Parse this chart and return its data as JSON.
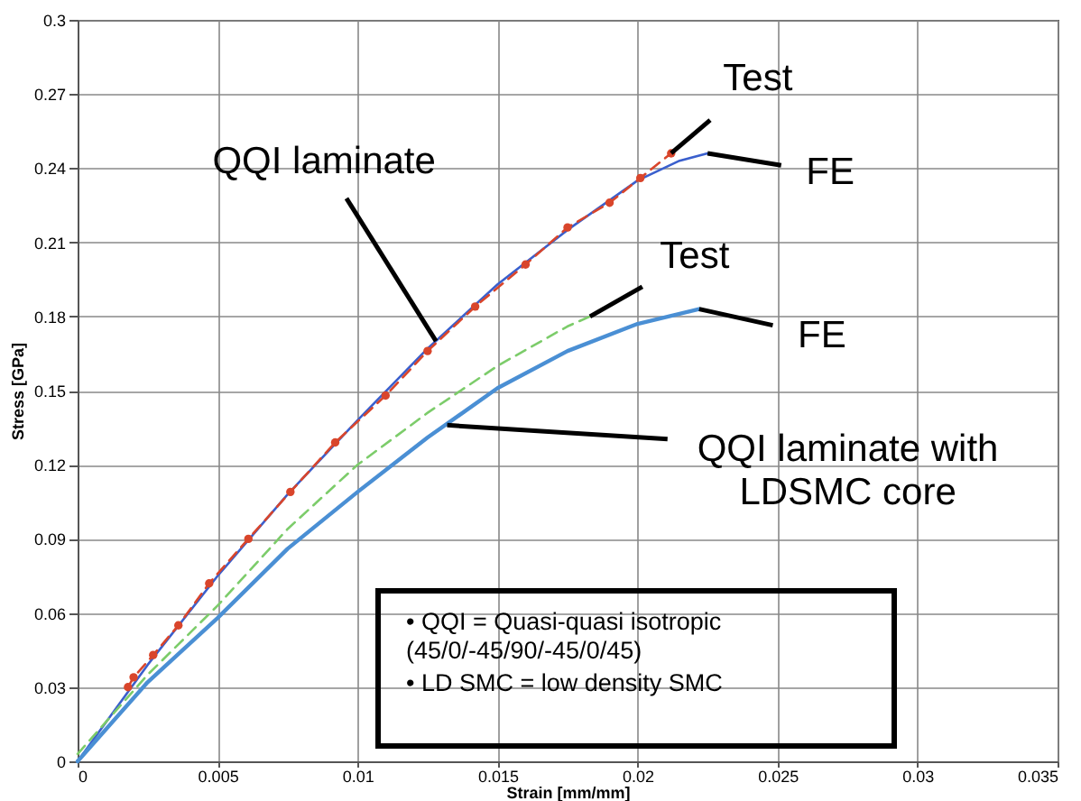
{
  "chart_data": {
    "type": "line",
    "xlabel": "Strain [mm/mm]",
    "ylabel": "Stress [GPa]",
    "xlim": [
      0,
      0.035
    ],
    "xticks": [
      0,
      0.005,
      0.01,
      0.015,
      0.02,
      0.025,
      0.03,
      0.035
    ],
    "ylim": [
      0,
      0.3
    ],
    "yticks": [
      0,
      0.03,
      0.06,
      0.09,
      0.12,
      0.15,
      0.18,
      0.21,
      0.24,
      0.27,
      0.3
    ],
    "grid": true,
    "series": [
      {
        "color": "#3a5fcd",
        "line_style": "solid",
        "marker": "none",
        "x": [
          0,
          0.0025,
          0.005,
          0.0075,
          0.01,
          0.0125,
          0.015,
          0.0175,
          0.02,
          0.0215,
          0.0225
        ],
        "values": [
          0,
          0.039,
          0.075,
          0.108,
          0.138,
          0.167,
          0.193,
          0.215,
          0.235,
          0.243,
          0.246
        ]
      },
      {
        "color": "#d9452b",
        "line_style": "dashed",
        "marker": "circle",
        "x": [
          0.0018,
          0.002,
          0.0027,
          0.0036,
          0.0047,
          0.0061,
          0.0076,
          0.0092,
          0.011,
          0.0125,
          0.0142,
          0.016,
          0.0175,
          0.019,
          0.0201,
          0.0212
        ],
        "values": [
          0.03,
          0.034,
          0.043,
          0.055,
          0.072,
          0.09,
          0.109,
          0.129,
          0.148,
          0.166,
          0.184,
          0.201,
          0.216,
          0.226,
          0.236,
          0.246
        ]
      },
      {
        "color": "#7ccc6a",
        "line_style": "dashed",
        "marker": "none",
        "x": [
          0,
          0.0025,
          0.005,
          0.0075,
          0.01,
          0.0125,
          0.015,
          0.0175,
          0.0183
        ],
        "values": [
          0.003,
          0.035,
          0.063,
          0.094,
          0.12,
          0.141,
          0.16,
          0.176,
          0.18
        ]
      },
      {
        "color": "#4a8fd4",
        "line_style": "solid",
        "marker": "none",
        "x": [
          0,
          0.0025,
          0.005,
          0.0075,
          0.01,
          0.0125,
          0.015,
          0.0175,
          0.02,
          0.0222
        ],
        "values": [
          0,
          0.032,
          0.058,
          0.086,
          0.109,
          0.131,
          0.151,
          0.166,
          0.177,
          0.183
        ]
      }
    ],
    "annotations": [
      {
        "text": "QQI laminate",
        "x": 0.0128,
        "y": 0.17
      },
      {
        "text": "Test",
        "x": 0.0212,
        "y": 0.246
      },
      {
        "text": "FE",
        "x": 0.0225,
        "y": 0.246
      },
      {
        "text": "Test",
        "x": 0.0183,
        "y": 0.18
      },
      {
        "text": "FE",
        "x": 0.0222,
        "y": 0.183
      },
      {
        "text": "QQI laminate with\nLDSMC core",
        "x": 0.0132,
        "y": 0.136
      },
      "• QQI = Quasi-quasi isotropic\n   (45/0/-45/90/-45/0/45)",
      "• LD SMC = low density SMC"
    ]
  }
}
